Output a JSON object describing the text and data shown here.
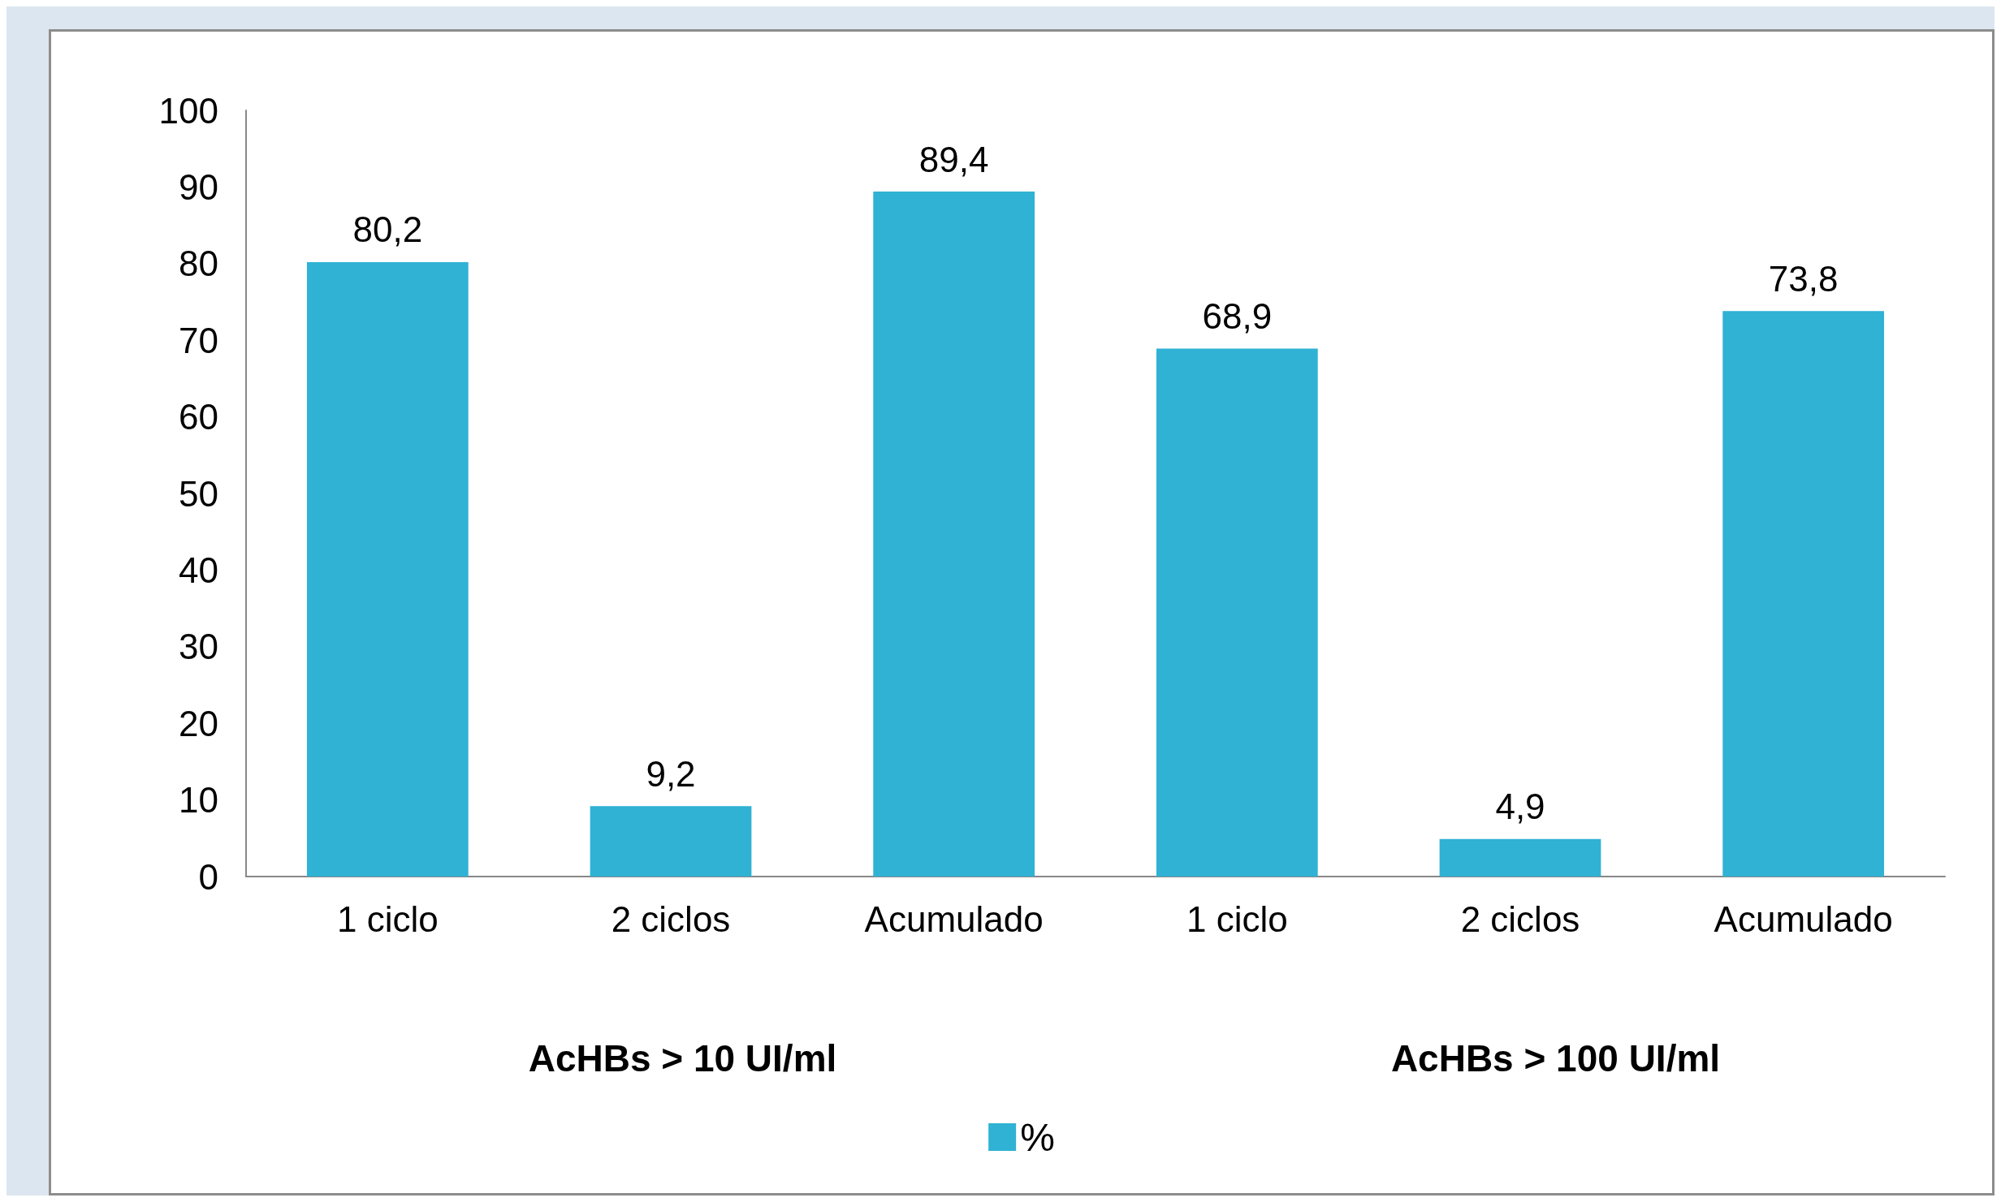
{
  "chart_data": {
    "type": "bar",
    "categories": [
      "1 ciclo",
      "2 ciclos",
      "Acumulado",
      "1 ciclo",
      "2 ciclos",
      "Acumulado"
    ],
    "series": [
      {
        "name": "%",
        "color": "#2fb2d4",
        "values": [
          80.2,
          9.2,
          89.4,
          68.9,
          4.9,
          73.8
        ],
        "value_labels": [
          "80,2",
          "9,2",
          "89,4",
          "68,9",
          "4,9",
          "73,8"
        ]
      }
    ],
    "ylim": [
      0,
      100
    ],
    "yticks": [
      0,
      10,
      20,
      30,
      40,
      50,
      60,
      70,
      80,
      90,
      100
    ],
    "annotations": [
      "AcHBs > 10 UI/ml",
      "AcHBs > 100 UI/ml"
    ],
    "legend": "bottom",
    "grid": false
  }
}
